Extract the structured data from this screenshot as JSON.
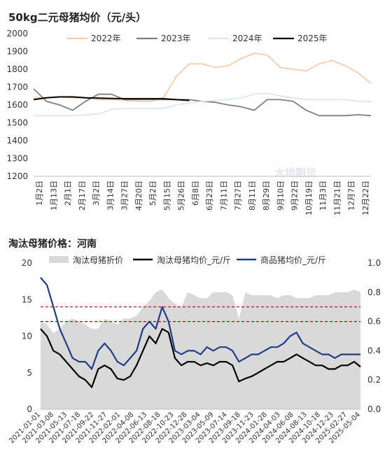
{
  "chart_data": [
    {
      "type": "line",
      "title": "50kg二元母猪均价（元/头）",
      "ylim": [
        1200,
        2000
      ],
      "yticks": [
        1200,
        1300,
        1400,
        1500,
        1600,
        1700,
        1800,
        1900,
        2000
      ],
      "xlim": [
        0,
        52
      ],
      "categories": [
        "1月2日",
        "1月13日",
        "2月1日",
        "2月17日",
        "3月2日",
        "3月14日",
        "3月27日",
        "4月20日",
        "5月2日",
        "5月15日",
        "5月26日",
        "6月8日",
        "6月23日",
        "7月11日",
        "7月27日",
        "8月11日",
        "8月29日",
        "9月10日",
        "9月22日",
        "10月19日",
        "11月3日",
        "11月21日",
        "12月7日",
        "12月22日"
      ],
      "legend_position": "top",
      "grid": false,
      "series": [
        {
          "name": "2022年",
          "color": "#f8cbad",
          "x": [
            0,
            2,
            4,
            6,
            8,
            10,
            12,
            14,
            16,
            18,
            20,
            22,
            24,
            26,
            28,
            30,
            32,
            34,
            36,
            38,
            40,
            42,
            44,
            46,
            48,
            50,
            52
          ],
          "values": [
            1640,
            1640,
            1645,
            1640,
            1640,
            1630,
            1630,
            1625,
            1620,
            1620,
            1640,
            1760,
            1830,
            1830,
            1810,
            1820,
            1860,
            1890,
            1880,
            1810,
            1800,
            1790,
            1830,
            1850,
            1820,
            1780,
            1720
          ]
        },
        {
          "name": "2023年",
          "color": "#7f7f7f",
          "x": [
            0,
            2,
            4,
            6,
            8,
            10,
            12,
            14,
            16,
            18,
            20,
            22,
            24,
            26,
            28,
            30,
            32,
            34,
            36,
            38,
            40,
            42,
            44,
            46,
            48,
            50,
            52
          ],
          "values": [
            1690,
            1620,
            1600,
            1570,
            1620,
            1660,
            1660,
            1630,
            1630,
            1630,
            1630,
            1630,
            1630,
            1620,
            1615,
            1600,
            1590,
            1570,
            1630,
            1630,
            1620,
            1570,
            1540,
            1540,
            1540,
            1545,
            1540
          ]
        },
        {
          "name": "2024年",
          "color": "#dae6f1",
          "x": [
            0,
            2,
            4,
            6,
            8,
            10,
            12,
            14,
            16,
            18,
            20,
            22,
            24,
            26,
            28,
            30,
            32,
            34,
            36,
            38,
            40,
            42,
            44,
            46,
            48,
            50,
            52
          ],
          "values": [
            1540,
            1540,
            1540,
            1540,
            1545,
            1550,
            1575,
            1580,
            1580,
            1580,
            1580,
            1600,
            1610,
            1620,
            1625,
            1630,
            1640,
            1660,
            1665,
            1650,
            1640,
            1630,
            1630,
            1630,
            1630,
            1620,
            1620
          ]
        },
        {
          "name": "2025年",
          "color": "#000000",
          "x": [
            0,
            2,
            4,
            6,
            8,
            10,
            12,
            14,
            16,
            18,
            20,
            22,
            24
          ],
          "values": [
            1630,
            1640,
            1645,
            1645,
            1640,
            1638,
            1636,
            1635,
            1635,
            1635,
            1635,
            1630,
            1625
          ]
        }
      ]
    },
    {
      "type": "line",
      "title": "淘汰母猪价格：河南",
      "ylim": [
        0,
        20
      ],
      "yticks": [
        0,
        5,
        10,
        15,
        20
      ],
      "ylim_right": [
        0,
        1.0
      ],
      "yticks_right": [
        "0.0",
        "0.2",
        "0.4",
        "0.6",
        "0.8",
        "1.0"
      ],
      "categories": [
        "2021-01-01",
        "2021-03-08",
        "2021-05-13",
        "2021-07-18",
        "2021-09-22",
        "2021-11-27",
        "2022-02-01",
        "2022-04-08",
        "2022-06-13",
        "2022-08-18",
        "2022-10-23",
        "2022-12-28",
        "2023-03-04",
        "2023-05-09",
        "2023-07-14",
        "2023-09-18",
        "2023-11-23",
        "2024-01-28",
        "2024-04-03",
        "2024-06-08",
        "2024-08-13",
        "2024-10-18",
        "2024-12-23",
        "2025-02-27",
        "2025-05-04"
      ],
      "legend_position": "top",
      "grid": false,
      "reference_lines": [
        14,
        12
      ],
      "series": [
        {
          "name": "淘汰母猪折价",
          "color": "#d9d9d9",
          "axis": "right",
          "type": "area",
          "x": [
            0,
            1,
            2,
            3,
            4,
            5,
            6,
            7,
            8,
            9,
            10,
            11,
            12,
            13,
            14,
            15,
            16,
            17,
            18,
            19,
            20,
            21,
            22,
            23,
            24,
            25,
            26,
            27,
            28,
            29,
            30,
            31,
            32,
            33,
            34,
            35,
            36,
            37,
            38,
            39,
            40,
            41,
            42,
            43,
            44,
            45,
            46,
            47,
            48,
            49,
            50
          ],
          "values": [
            0.6,
            0.58,
            0.52,
            0.55,
            0.6,
            0.62,
            0.6,
            0.58,
            0.55,
            0.55,
            0.62,
            0.6,
            0.58,
            0.62,
            0.62,
            0.64,
            0.7,
            0.74,
            0.8,
            0.82,
            0.76,
            0.72,
            0.7,
            0.8,
            0.78,
            0.76,
            0.76,
            0.8,
            0.8,
            0.8,
            0.78,
            0.62,
            0.8,
            0.78,
            0.78,
            0.78,
            0.78,
            0.76,
            0.78,
            0.78,
            0.76,
            0.76,
            0.76,
            0.78,
            0.78,
            0.78,
            0.8,
            0.8,
            0.8,
            0.82,
            0.8
          ]
        },
        {
          "name": "淘汰母猪均价_元/斤",
          "color": "#000000",
          "axis": "left",
          "x": [
            0,
            1,
            2,
            3,
            4,
            5,
            6,
            7,
            8,
            9,
            10,
            11,
            12,
            13,
            14,
            15,
            16,
            17,
            18,
            19,
            20,
            21,
            22,
            23,
            24,
            25,
            26,
            27,
            28,
            29,
            30,
            31,
            32,
            33,
            34,
            35,
            36,
            37,
            38,
            39,
            40,
            41,
            42,
            43,
            44,
            45,
            46,
            47,
            48,
            49,
            50
          ],
          "values": [
            11,
            10,
            8,
            7.5,
            6.5,
            5.5,
            4.5,
            4,
            3,
            5.5,
            6,
            5.5,
            4.2,
            4,
            4.5,
            6,
            8,
            10,
            9,
            11,
            10.5,
            7,
            6,
            6.5,
            6.5,
            6,
            6.3,
            6,
            6.5,
            6.5,
            6,
            3.8,
            4.2,
            4.5,
            5,
            5.5,
            6,
            6.5,
            6.5,
            7,
            7.5,
            7,
            6.5,
            6,
            6,
            5.5,
            5.5,
            6,
            6,
            6.5,
            5.8
          ]
        },
        {
          "name": "商品猪均价_元/斤",
          "color": "#1f3c88",
          "axis": "left",
          "x": [
            0,
            1,
            2,
            3,
            4,
            5,
            6,
            7,
            8,
            9,
            10,
            11,
            12,
            13,
            14,
            15,
            16,
            17,
            18,
            19,
            20,
            21,
            22,
            23,
            24,
            25,
            26,
            27,
            28,
            29,
            30,
            31,
            32,
            33,
            34,
            35,
            36,
            37,
            38,
            39,
            40,
            41,
            42,
            43,
            44,
            45,
            46,
            47,
            48,
            49,
            50
          ],
          "values": [
            18,
            17,
            14,
            11,
            9,
            7,
            6.5,
            6.5,
            5.5,
            8,
            9,
            8,
            6.5,
            6,
            7,
            8,
            11,
            12,
            11,
            14,
            12,
            8,
            7.5,
            8,
            8,
            7.5,
            8.5,
            8,
            8.5,
            8.5,
            8,
            6.5,
            7,
            7.5,
            7.5,
            8,
            8.5,
            8.5,
            9,
            10,
            10.5,
            9,
            8.5,
            8,
            7.5,
            7.5,
            7,
            7.5,
            7.5,
            7.5,
            7.5
          ]
        }
      ]
    }
  ]
}
